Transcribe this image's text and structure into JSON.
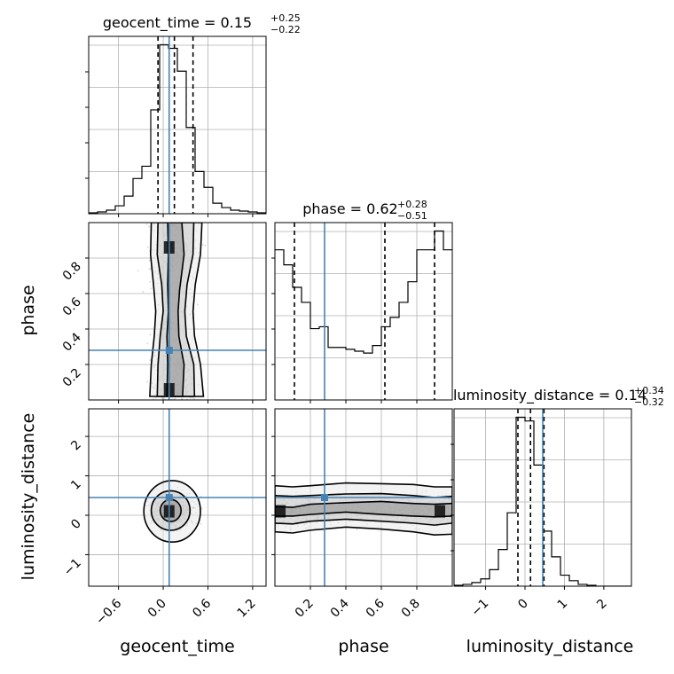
{
  "chart_data": {
    "type": "corner",
    "parameters": [
      "geocent_time",
      "phase",
      "luminosity_distance"
    ],
    "truth": {
      "geocent_time": 0.08,
      "phase": 0.28,
      "luminosity_distance": 0.45
    },
    "truth_color": "#4682b4",
    "titles": [
      {
        "param": "geocent_time",
        "median": "0.15",
        "plus": "+0.25",
        "minus": "−0.22"
      },
      {
        "param": "phase",
        "median": "0.62",
        "plus": "+0.28",
        "minus": "−0.51"
      },
      {
        "param": "luminosity_distance",
        "median": "0.14",
        "plus": "+0.34",
        "minus": "−0.32"
      }
    ],
    "ranges": {
      "geocent_time": [
        -1.0,
        1.38
      ],
      "phase": [
        0.0,
        1.0
      ],
      "luminosity_distance": [
        -1.8,
        2.7
      ]
    },
    "ticks": {
      "geocent_time": {
        "values": [
          -0.6,
          0.0,
          0.6,
          1.2
        ],
        "labels": [
          "−0.6",
          "0.0",
          "0.6",
          "1.2"
        ]
      },
      "phase": {
        "values": [
          0.2,
          0.4,
          0.6,
          0.8
        ],
        "labels": [
          "0.2",
          "0.4",
          "0.6",
          "0.8"
        ]
      },
      "luminosity_distance": {
        "values": [
          -1,
          0,
          1,
          2
        ],
        "labels": [
          "−1",
          "0",
          "1",
          "2"
        ]
      }
    },
    "quantiles": {
      "geocent_time": [
        -0.07,
        0.15,
        0.4
      ],
      "phase": [
        0.11,
        0.62,
        0.9
      ],
      "luminosity_distance": [
        -0.18,
        0.14,
        0.48
      ]
    },
    "histograms": {
      "geocent_time": {
        "edges": [
          -1.0,
          -0.881,
          -0.762,
          -0.643,
          -0.524,
          -0.405,
          -0.286,
          -0.167,
          -0.048,
          0.071,
          0.19,
          0.309,
          0.428,
          0.547,
          0.666,
          0.785,
          0.904,
          1.023,
          1.142,
          1.261,
          1.38
        ],
        "counts": [
          0.005,
          0.01,
          0.02,
          0.045,
          0.1,
          0.2,
          0.27,
          0.59,
          0.96,
          0.94,
          0.81,
          0.49,
          0.24,
          0.15,
          0.06,
          0.035,
          0.02,
          0.015,
          0.01,
          0.005
        ]
      },
      "phase": {
        "edges": [
          0.0,
          0.05,
          0.1,
          0.15,
          0.2,
          0.25,
          0.3,
          0.35,
          0.4,
          0.45,
          0.5,
          0.55,
          0.6,
          0.65,
          0.7,
          0.75,
          0.8,
          0.85,
          0.9,
          0.95,
          1.0
        ],
        "counts": [
          0.8,
          0.72,
          0.6,
          0.52,
          0.38,
          0.39,
          0.28,
          0.28,
          0.27,
          0.26,
          0.25,
          0.29,
          0.39,
          0.44,
          0.52,
          0.63,
          0.8,
          0.8,
          0.9,
          0.8
        ]
      },
      "luminosity_distance": {
        "edges": [
          -1.8,
          -1.575,
          -1.35,
          -1.125,
          -0.9,
          -0.675,
          -0.45,
          -0.225,
          0.0,
          0.225,
          0.45,
          0.675,
          0.9,
          1.125,
          1.35,
          1.575,
          1.8,
          2.025,
          2.25,
          2.475,
          2.7
        ],
        "counts": [
          0.005,
          0.01,
          0.02,
          0.04,
          0.09,
          0.2,
          0.4,
          0.92,
          0.9,
          0.66,
          0.3,
          0.16,
          0.06,
          0.03,
          0.01,
          0.005,
          0,
          0,
          0,
          0
        ]
      }
    },
    "contours": {
      "phase_vs_geocent_time": [
        {
          "level": 1,
          "left": [
            [
              0.05,
              0.02
            ],
            [
              0.06,
              0.2
            ],
            [
              0.05,
              0.36
            ],
            [
              0.07,
              0.5
            ],
            [
              0.06,
              0.65
            ],
            [
              0.07,
              0.82
            ],
            [
              0.06,
              1.0
            ]
          ],
          "right": [
            [
              0.26,
              0.02
            ],
            [
              0.28,
              0.2
            ],
            [
              0.21,
              0.36
            ],
            [
              0.2,
              0.5
            ],
            [
              0.22,
              0.62
            ],
            [
              0.28,
              0.82
            ],
            [
              0.25,
              1.0
            ]
          ]
        },
        {
          "level": 2,
          "left": [
            [
              -0.08,
              0.02
            ],
            [
              -0.07,
              0.2
            ],
            [
              -0.04,
              0.36
            ],
            [
              0.0,
              0.5
            ],
            [
              -0.02,
              0.65
            ],
            [
              -0.08,
              0.82
            ],
            [
              -0.07,
              1.0
            ]
          ],
          "right": [
            [
              0.42,
              0.02
            ],
            [
              0.41,
              0.2
            ],
            [
              0.31,
              0.36
            ],
            [
              0.29,
              0.5
            ],
            [
              0.32,
              0.65
            ],
            [
              0.4,
              0.82
            ],
            [
              0.41,
              1.0
            ]
          ]
        },
        {
          "level": 3,
          "left": [
            [
              -0.18,
              0.02
            ],
            [
              -0.16,
              0.2
            ],
            [
              -0.12,
              0.36
            ],
            [
              -0.1,
              0.5
            ],
            [
              -0.13,
              0.65
            ],
            [
              -0.17,
              0.82
            ],
            [
              -0.16,
              1.0
            ]
          ],
          "right": [
            [
              0.54,
              0.02
            ],
            [
              0.5,
              0.2
            ],
            [
              0.42,
              0.36
            ],
            [
              0.4,
              0.5
            ],
            [
              0.43,
              0.65
            ],
            [
              0.5,
              0.82
            ],
            [
              0.52,
              1.0
            ]
          ]
        }
      ],
      "luminosity_distance_vs_geocent_time": [
        {
          "level": 1,
          "cx": 0.1,
          "cy": 0.12,
          "rx": 0.14,
          "ry": 0.28
        },
        {
          "level": 2,
          "cx": 0.1,
          "cy": 0.12,
          "rx": 0.26,
          "ry": 0.5
        },
        {
          "level": 3,
          "cx": 0.12,
          "cy": 0.1,
          "rx": 0.38,
          "ry": 0.78
        }
      ],
      "luminosity_distance_vs_phase": [
        {
          "level": 1,
          "top": [
            [
              0.0,
              0.22
            ],
            [
              0.1,
              0.2
            ],
            [
              0.2,
              0.28
            ],
            [
              0.4,
              0.32
            ],
            [
              0.6,
              0.35
            ],
            [
              0.78,
              0.3
            ],
            [
              0.9,
              0.28
            ],
            [
              1.0,
              0.3
            ]
          ],
          "bottom": [
            [
              0.0,
              -0.02
            ],
            [
              0.1,
              -0.02
            ],
            [
              0.2,
              0.02
            ],
            [
              0.4,
              0.08
            ],
            [
              0.6,
              0.02
            ],
            [
              0.78,
              -0.02
            ],
            [
              0.9,
              -0.04
            ],
            [
              1.0,
              -0.02
            ]
          ]
        },
        {
          "level": 2,
          "top": [
            [
              0.0,
              0.5
            ],
            [
              0.1,
              0.48
            ],
            [
              0.2,
              0.5
            ],
            [
              0.4,
              0.54
            ],
            [
              0.6,
              0.55
            ],
            [
              0.78,
              0.5
            ],
            [
              0.9,
              0.45
            ],
            [
              1.0,
              0.48
            ]
          ],
          "bottom": [
            [
              0.0,
              -0.2
            ],
            [
              0.1,
              -0.22
            ],
            [
              0.2,
              -0.15
            ],
            [
              0.4,
              -0.1
            ],
            [
              0.6,
              -0.15
            ],
            [
              0.78,
              -0.2
            ],
            [
              0.9,
              -0.25
            ],
            [
              1.0,
              -0.2
            ]
          ]
        },
        {
          "level": 3,
          "top": [
            [
              0.0,
              0.75
            ],
            [
              0.1,
              0.72
            ],
            [
              0.2,
              0.75
            ],
            [
              0.4,
              0.82
            ],
            [
              0.6,
              0.8
            ],
            [
              0.78,
              0.78
            ],
            [
              0.9,
              0.72
            ],
            [
              1.0,
              0.72
            ]
          ],
          "bottom": [
            [
              0.0,
              -0.42
            ],
            [
              0.1,
              -0.45
            ],
            [
              0.2,
              -0.38
            ],
            [
              0.4,
              -0.3
            ],
            [
              0.6,
              -0.35
            ],
            [
              0.78,
              -0.42
            ],
            [
              0.9,
              -0.5
            ],
            [
              1.0,
              -0.48
            ]
          ]
        }
      ]
    },
    "grid": true,
    "colors": {
      "hist": "#000000",
      "scatter": "#9e9e9e",
      "density": "#000000",
      "grid": "#b0b0b0"
    }
  }
}
